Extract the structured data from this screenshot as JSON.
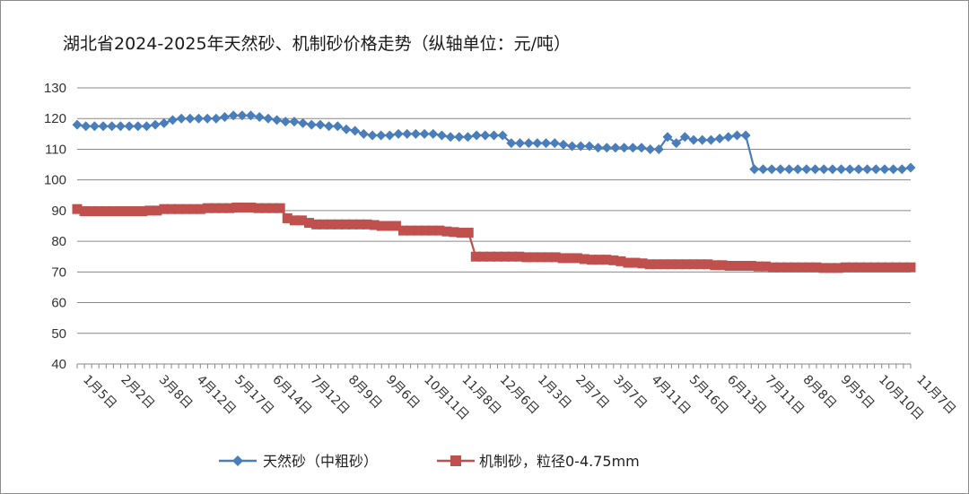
{
  "chart_data": {
    "type": "line",
    "title": "湖北省2024-2025年天然砂、机制砂价格走势（纵轴单位：元/吨）",
    "xlabel": "",
    "ylabel": "",
    "ylim": [
      40,
      130
    ],
    "yticks": [
      40,
      50,
      60,
      70,
      80,
      90,
      100,
      110,
      120,
      130
    ],
    "grid": true,
    "legend_position": "bottom",
    "x_tick_labels": [
      "1月5日",
      "2月2日",
      "3月8日",
      "4月12日",
      "5月17日",
      "6月14日",
      "7月12日",
      "8月9日",
      "9月6日",
      "10月11日",
      "11月8日",
      "12月6日",
      "1月3日",
      "2月7日",
      "3月7日",
      "4月11日",
      "5月16日",
      "6月13日",
      "7月11日",
      "8月8日",
      "9月5日",
      "10月10日",
      "11月7日"
    ],
    "series": [
      {
        "name": "天然砂（中粗砂）",
        "color": "#4a7ebb",
        "marker": "diamond",
        "values": [
          118,
          117.5,
          117.5,
          117.5,
          117.5,
          117.5,
          117.5,
          117.5,
          117.5,
          118,
          118.5,
          119.5,
          120,
          120,
          120,
          120,
          120,
          120.5,
          121,
          121,
          121,
          120.5,
          120,
          119.5,
          119,
          119,
          118.5,
          118,
          118,
          117.5,
          117.5,
          116.5,
          116,
          115,
          114.5,
          114.5,
          114.5,
          115,
          115,
          115,
          115,
          115,
          114.5,
          114,
          114,
          114,
          114.5,
          114.5,
          114.5,
          114.5,
          112,
          112,
          112,
          112,
          112,
          112,
          111.5,
          111,
          111,
          111,
          110.5,
          110.5,
          110.5,
          110.5,
          110.5,
          110.5,
          110,
          110,
          114,
          112,
          114,
          113,
          113,
          113,
          113.5,
          114,
          114.5,
          114.5,
          103.5,
          103.5,
          103.5,
          103.5,
          103.5,
          103.5,
          103.5,
          103.5,
          103.5,
          103.5,
          103.5,
          103.5,
          103.5,
          103.5,
          103.5,
          103.5,
          103.5,
          103.5,
          104
        ]
      },
      {
        "name": "机制砂，粒径0-4.75mm",
        "color": "#c0504d",
        "marker": "square",
        "values": [
          90.5,
          89.8,
          89.8,
          89.8,
          89.8,
          89.8,
          89.8,
          89.8,
          89.8,
          89.8,
          90,
          90,
          90.5,
          90.5,
          90.5,
          90.5,
          90.5,
          90.5,
          90.8,
          90.8,
          90.8,
          90.8,
          91,
          91,
          91,
          90.8,
          90.8,
          90.8,
          90.8,
          87.5,
          86.8,
          86.8,
          86,
          85.5,
          85.5,
          85.5,
          85.5,
          85.5,
          85.5,
          85.5,
          85.5,
          85.3,
          85,
          85,
          85,
          83.5,
          83.5,
          83.5,
          83.5,
          83.5,
          83.5,
          83.2,
          83,
          82.8,
          82.8,
          75,
          75,
          75,
          75,
          75,
          75,
          75,
          74.8,
          74.8,
          74.8,
          74.8,
          74.8,
          74.5,
          74.5,
          74.5,
          74.2,
          74,
          74,
          74,
          73.8,
          73.5,
          73,
          73,
          72.8,
          72.5,
          72.5,
          72.5,
          72.5,
          72.5,
          72.5,
          72.5,
          72.5,
          72.5,
          72.2,
          72.2,
          72,
          72,
          72,
          72,
          71.8,
          71.8,
          71.5,
          71.5,
          71.5,
          71.5,
          71.5,
          71.5,
          71.5,
          71.3,
          71.3,
          71.3,
          71.5,
          71.5,
          71.5,
          71.5,
          71.5,
          71.5,
          71.5,
          71.5,
          71.5,
          71.5
        ]
      }
    ]
  }
}
